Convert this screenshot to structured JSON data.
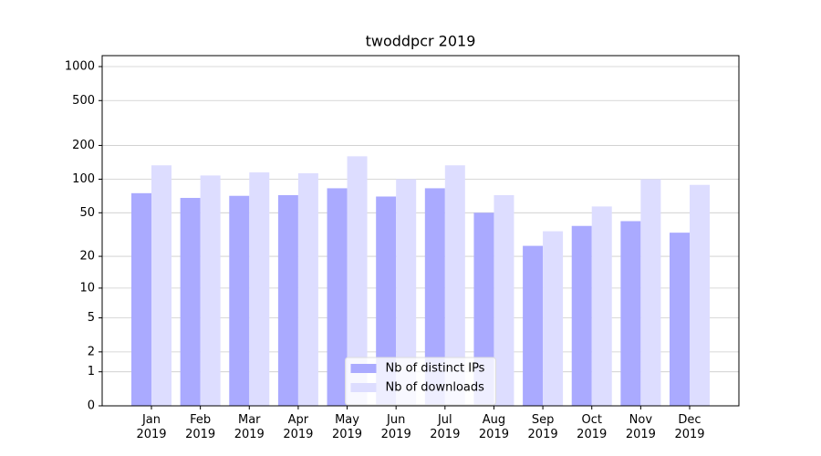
{
  "chart_data": {
    "type": "bar",
    "title": "twoddpcr 2019",
    "categories": [
      "Jan\n2019",
      "Feb\n2019",
      "Mar\n2019",
      "Apr\n2019",
      "May\n2019",
      "Jun\n2019",
      "Jul\n2019",
      "Aug\n2019",
      "Sep\n2019",
      "Oct\n2019",
      "Nov\n2019",
      "Dec\n2019"
    ],
    "series": [
      {
        "name": "Nb of distinct IPs",
        "color": "#aaaaff",
        "values": [
          75,
          68,
          71,
          72,
          83,
          70,
          83,
          50,
          25,
          38,
          42,
          33
        ]
      },
      {
        "name": "Nb of downloads",
        "color": "#ddddff",
        "values": [
          133,
          108,
          115,
          113,
          160,
          100,
          133,
          72,
          34,
          57,
          100,
          89
        ]
      }
    ],
    "yscale": "log1p",
    "ylim": [
      0,
      1250
    ],
    "yticks": [
      0,
      1,
      2,
      5,
      10,
      20,
      50,
      100,
      200,
      500,
      1000
    ],
    "grid": true,
    "legend": "lower center"
  }
}
